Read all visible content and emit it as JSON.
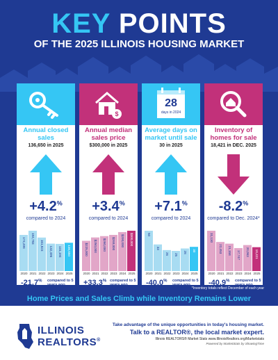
{
  "header": {
    "title_part1": "KEY",
    "title_part2": "POINTS",
    "subtitle": "OF THE 2025 ILLINOIS HOUSING MARKET"
  },
  "colors": {
    "navy": "#1f3a93",
    "cyan": "#35c6f4",
    "magenta": "#c2317a",
    "cyan_light": "#a8dcf2",
    "pink_light": "#e2a6c8"
  },
  "cards": [
    {
      "icon": "key-icon",
      "theme": "cyan",
      "label": "Annual closed sales",
      "sub": "136,650 in 2025",
      "direction": "up",
      "big": "+4.2",
      "pct": "%",
      "compare": "compared to 2024",
      "five_value": "-21.7",
      "five_pct": "%",
      "five_label": "compared to 5 years ago",
      "bar_values": [
        174498,
        194783,
        161823,
        132496,
        131194,
        136650
      ],
      "bar_labels": [
        "174,498",
        "194,783",
        "161,823",
        "132,496",
        "131,194",
        "136,650"
      ]
    },
    {
      "icon": "house-dollar-icon",
      "theme": "magenta",
      "label": "Annual median sales price",
      "sub": "$300,000 in 2025",
      "direction": "up",
      "big": "+3.4",
      "pct": "%",
      "compare": "compared to 2024",
      "five_value": "+33.3",
      "five_pct": "%",
      "five_label": "compared to 5 years ago",
      "bar_values": [
        225000,
        250000,
        260000,
        269000,
        290000,
        300000
      ],
      "bar_labels": [
        "$225,000",
        "$250,000",
        "$260,000",
        "$269,000",
        "$290,000",
        "$300,000"
      ]
    },
    {
      "icon": "calendar-icon",
      "calendar_number": "28",
      "calendar_caption": "days in 2024",
      "theme": "cyan",
      "label": "Average days on market until sale",
      "sub": "30 in 2025",
      "direction": "up",
      "big": "+7.1",
      "pct": "%",
      "compare": "compared to 2024",
      "five_value": "-40.0",
      "five_pct": "%",
      "five_label": "compared to 5 years ago",
      "bar_values": [
        50,
        33,
        26,
        25,
        28,
        30
      ],
      "bar_labels": [
        "50",
        "33",
        "26",
        "25",
        "28",
        "30"
      ]
    },
    {
      "icon": "magnifier-house-icon",
      "theme": "magenta",
      "label": "Inventory of homes for sale",
      "sub": "18,421 in DEC. 2025",
      "direction": "down",
      "big": "-8.2",
      "pct": "%",
      "compare": "compared to Dec. 2024*",
      "five_value": "-40.9",
      "five_pct": "%",
      "five_label": "compared to 5 years ago",
      "bar_values": [
        31130,
        22453,
        21158,
        17747,
        20063,
        18421
      ],
      "bar_labels": [
        "31,130",
        "22,453",
        "21,158",
        "17,747",
        "20,063",
        "18,421"
      ]
    }
  ],
  "years": [
    "2020",
    "2021",
    "2022",
    "2023",
    "2024",
    "2025"
  ],
  "footnote": "*Inventory totals reflect December of each year",
  "banner": "Home Prices and Sales Climb while Inventory Remains Lower",
  "footer": {
    "logo_line1": "ILLINOIS",
    "logo_line2": "REALTORS",
    "logo_reg": "®",
    "line1": "Take advantage of the unique opportunities in today's housing market.",
    "line2": "Talk to a REALTOR®, the local market expert.",
    "line3": "Illinois REALTORS® Market Stats www.IllinoisRealtors.org/Marketstats",
    "line4": "Powered by MarketStats by ShowingTime"
  }
}
